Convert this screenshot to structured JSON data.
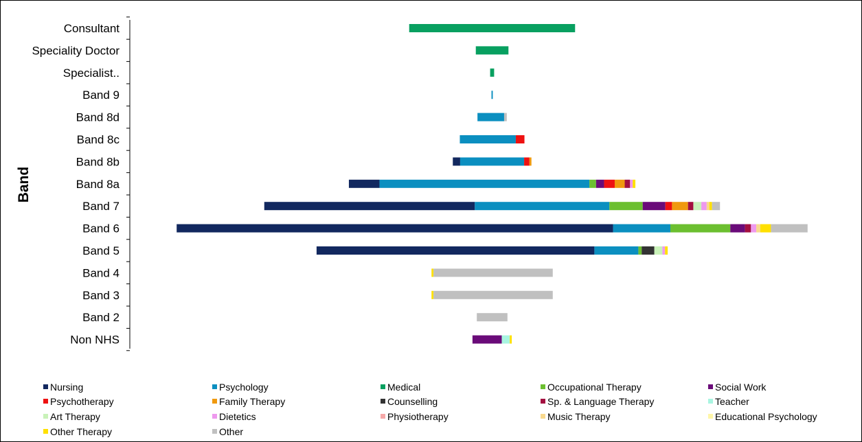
{
  "chart_data": {
    "type": "bar",
    "orientation": "horizontal",
    "stacked": true,
    "centered": true,
    "ylabel": "Band",
    "categories": [
      "Consultant",
      "Speciality Doctor",
      "Specialist..",
      "Band 9",
      "Band 8d",
      "Band 8c",
      "Band 8b",
      "Band 8a",
      "Band 7",
      "Band 6",
      "Band 5",
      "Band 4",
      "Band 3",
      "Band 2",
      "Non NHS"
    ],
    "series": [
      {
        "name": "Nursing",
        "color": "#12285f",
        "values": [
          0,
          0,
          0,
          0,
          0,
          0,
          11,
          46,
          316,
          655,
          417,
          0,
          0,
          0,
          0
        ]
      },
      {
        "name": "Psychology",
        "color": "#0b8fc0",
        "values": [
          0,
          0,
          0,
          2,
          40,
          84,
          96,
          315,
          202,
          86,
          66,
          0,
          0,
          0,
          0
        ]
      },
      {
        "name": "Medical",
        "color": "#08a060",
        "values": [
          249,
          49,
          6,
          0,
          0,
          0,
          0,
          0,
          0,
          0,
          0,
          0,
          0,
          0,
          0
        ]
      },
      {
        "name": "Occupational Therapy",
        "color": "#6cbf30",
        "values": [
          0,
          0,
          0,
          0,
          0,
          0,
          0,
          10,
          50,
          90,
          5,
          0,
          0,
          0,
          0
        ]
      },
      {
        "name": "Social Work",
        "color": "#6a0b79",
        "values": [
          0,
          0,
          0,
          0,
          0,
          0,
          0,
          12,
          34,
          22,
          0,
          0,
          0,
          0,
          44
        ]
      },
      {
        "name": "Psychotherapy",
        "color": "#ee1111",
        "values": [
          0,
          0,
          0,
          0,
          0,
          13,
          8,
          16,
          10,
          0,
          0,
          0,
          0,
          0,
          0
        ]
      },
      {
        "name": "Family Therapy",
        "color": "#f0990e",
        "values": [
          0,
          0,
          0,
          0,
          0,
          0,
          3,
          15,
          24,
          0,
          0,
          0,
          0,
          0,
          0
        ]
      },
      {
        "name": "Counselling",
        "color": "#333333",
        "values": [
          0,
          0,
          0,
          0,
          0,
          0,
          0,
          0,
          0,
          0,
          19,
          0,
          0,
          0,
          0
        ]
      },
      {
        "name": "Sp. & Language Therapy",
        "color": "#a31040",
        "values": [
          0,
          0,
          0,
          0,
          0,
          0,
          0,
          8,
          8,
          9,
          0,
          0,
          0,
          0,
          0
        ]
      },
      {
        "name": "Teacher",
        "color": "#a9f5e1",
        "values": [
          0,
          0,
          0,
          0,
          0,
          0,
          0,
          0,
          0,
          0,
          0,
          0,
          0,
          0,
          12
        ]
      },
      {
        "name": "Art Therapy",
        "color": "#c9f2b9",
        "values": [
          0,
          0,
          0,
          0,
          0,
          0,
          0,
          0,
          12,
          0,
          12,
          0,
          0,
          0,
          0
        ]
      },
      {
        "name": "Dietetics",
        "color": "#ee99ee",
        "values": [
          0,
          0,
          0,
          0,
          0,
          0,
          0,
          4,
          8,
          8,
          4,
          0,
          0,
          0,
          0
        ]
      },
      {
        "name": "Physiotherapy",
        "color": "#f6a9a9",
        "values": [
          0,
          0,
          0,
          0,
          0,
          0,
          0,
          0,
          0,
          0,
          0,
          0,
          0,
          0,
          0
        ]
      },
      {
        "name": "Music Therapy",
        "color": "#f8d98e",
        "values": [
          0,
          0,
          0,
          0,
          0,
          0,
          0,
          0,
          4,
          6,
          0,
          0,
          0,
          0,
          0
        ]
      },
      {
        "name": "Educational Psychology",
        "color": "#fff6a8",
        "values": [
          0,
          0,
          0,
          0,
          0,
          0,
          0,
          0,
          0,
          0,
          0,
          0,
          0,
          0,
          0
        ]
      },
      {
        "name": "Other Therapy",
        "color": "#ffe000",
        "values": [
          0,
          0,
          0,
          0,
          0,
          0,
          0,
          4,
          4,
          16,
          4,
          3,
          3,
          0,
          3
        ]
      },
      {
        "name": "Other",
        "color": "#c0c0c0",
        "values": [
          0,
          0,
          0,
          0,
          4,
          0,
          0,
          0,
          12,
          55,
          0,
          179,
          179,
          46,
          0
        ]
      }
    ],
    "legend_position": "bottom",
    "legend_columns": 5,
    "grid": false,
    "x_axis_visible": false
  }
}
